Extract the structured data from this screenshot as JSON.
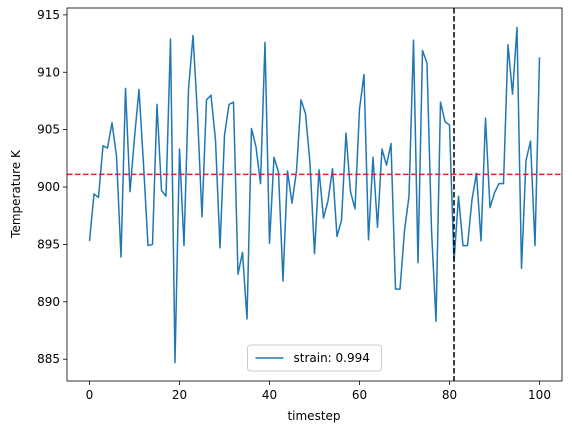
{
  "chart_data": {
    "type": "line",
    "xlabel": "timestep",
    "ylabel": "Temperature K",
    "x": [
      0,
      1,
      2,
      3,
      4,
      5,
      6,
      7,
      8,
      9,
      10,
      11,
      12,
      13,
      14,
      15,
      16,
      17,
      18,
      19,
      20,
      21,
      22,
      23,
      24,
      25,
      26,
      27,
      28,
      29,
      30,
      31,
      32,
      33,
      34,
      35,
      36,
      37,
      38,
      39,
      40,
      41,
      42,
      43,
      44,
      45,
      46,
      47,
      48,
      49,
      50,
      51,
      52,
      53,
      54,
      55,
      56,
      57,
      58,
      59,
      60,
      61,
      62,
      63,
      64,
      65,
      66,
      67,
      68,
      69,
      70,
      71,
      72,
      73,
      74,
      75,
      76,
      77,
      78,
      79,
      80,
      81,
      82,
      83,
      84,
      85,
      86,
      87,
      88,
      89,
      90,
      91,
      92,
      93,
      94,
      95,
      96,
      97,
      98,
      99,
      100
    ],
    "series": [
      {
        "name": "strain: 0.994",
        "color": "#1f77b4",
        "values": [
          895.3,
          899.4,
          899.1,
          903.6,
          903.4,
          905.6,
          902.7,
          893.9,
          908.6,
          899.6,
          904.3,
          908.5,
          902.0,
          894.9,
          895.0,
          907.2,
          899.7,
          899.2,
          912.9,
          884.7,
          903.3,
          894.9,
          908.5,
          913.2,
          906.3,
          897.4,
          907.6,
          908.0,
          904.1,
          894.7,
          904.5,
          907.2,
          907.4,
          892.4,
          894.3,
          888.5,
          905.1,
          903.5,
          900.3,
          912.6,
          895.1,
          902.6,
          901.3,
          891.8,
          901.4,
          898.6,
          901.4,
          907.6,
          906.4,
          902.1,
          894.2,
          901.5,
          897.3,
          898.8,
          901.6,
          895.7,
          897.1,
          904.7,
          899.6,
          898.1,
          906.8,
          909.8,
          895.4,
          902.6,
          896.5,
          903.3,
          901.9,
          903.8,
          891.1,
          891.1,
          896.2,
          899.2,
          912.8,
          893.4,
          911.9,
          910.8,
          896.3,
          888.3,
          907.4,
          905.7,
          905.4,
          893.5,
          899.2,
          894.9,
          894.9,
          898.9,
          901.2,
          895.3,
          906.0,
          898.2,
          899.5,
          900.3,
          900.3,
          912.4,
          908.1,
          913.9,
          892.9,
          902.3,
          904.0,
          894.9,
          911.3
        ]
      }
    ],
    "hlines": [
      {
        "value": 901.1,
        "color": "#d62728"
      }
    ],
    "vlines": [
      {
        "value": 81,
        "color": "#000000"
      }
    ],
    "xlim": [
      -5,
      105
    ],
    "ylim": [
      883.1,
      915.6
    ],
    "xticks": [
      0,
      20,
      40,
      60,
      80,
      100
    ],
    "yticks": [
      885,
      890,
      895,
      900,
      905,
      910,
      915
    ],
    "legend": "lower center"
  }
}
